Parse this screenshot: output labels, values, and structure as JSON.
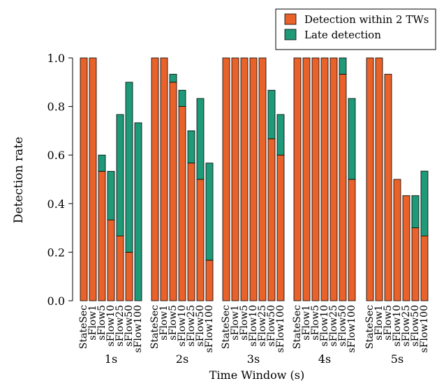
{
  "chart_data": {
    "type": "bar",
    "stacked": true,
    "ylabel": "Detection rate",
    "xlabel": "Time Window (s)",
    "ylim": [
      0,
      1.0
    ],
    "yticks": [
      "0.0",
      "0.2",
      "0.4",
      "0.6",
      "0.8",
      "1.0"
    ],
    "ytick_values": [
      0,
      0.2,
      0.4,
      0.6,
      0.8,
      1.0
    ],
    "grid": false,
    "legend_position": "top-right",
    "methods": [
      "StateSec",
      "sFlow1",
      "sFlow5",
      "sFlow10",
      "sFlow25",
      "sFlow50",
      "sFlow100"
    ],
    "groups": [
      "1s",
      "2s",
      "3s",
      "4s",
      "5s"
    ],
    "series": [
      {
        "name": "Detection within 2 TWs",
        "color": "#e8622a",
        "values": [
          [
            1.0,
            1.0,
            0.533,
            0.333,
            0.267,
            0.2,
            0.0
          ],
          [
            1.0,
            1.0,
            0.9,
            0.8,
            0.567,
            0.5,
            0.167
          ],
          [
            1.0,
            1.0,
            1.0,
            1.0,
            1.0,
            0.667,
            0.6
          ],
          [
            1.0,
            1.0,
            1.0,
            1.0,
            1.0,
            0.933,
            0.5
          ],
          [
            1.0,
            1.0,
            0.933,
            0.5,
            0.433,
            0.3,
            0.267
          ]
        ]
      },
      {
        "name": "Late detection",
        "color": "#1f9a78",
        "values": [
          [
            0.0,
            0.0,
            0.067,
            0.2,
            0.5,
            0.7,
            0.733
          ],
          [
            0.0,
            0.0,
            0.033,
            0.067,
            0.133,
            0.333,
            0.4
          ],
          [
            0.0,
            0.0,
            0.0,
            0.0,
            0.0,
            0.2,
            0.167
          ],
          [
            0.0,
            0.0,
            0.0,
            0.0,
            0.0,
            0.067,
            0.333
          ],
          [
            0.0,
            0.0,
            0.0,
            0.0,
            0.0,
            0.133,
            0.267
          ]
        ]
      }
    ]
  }
}
